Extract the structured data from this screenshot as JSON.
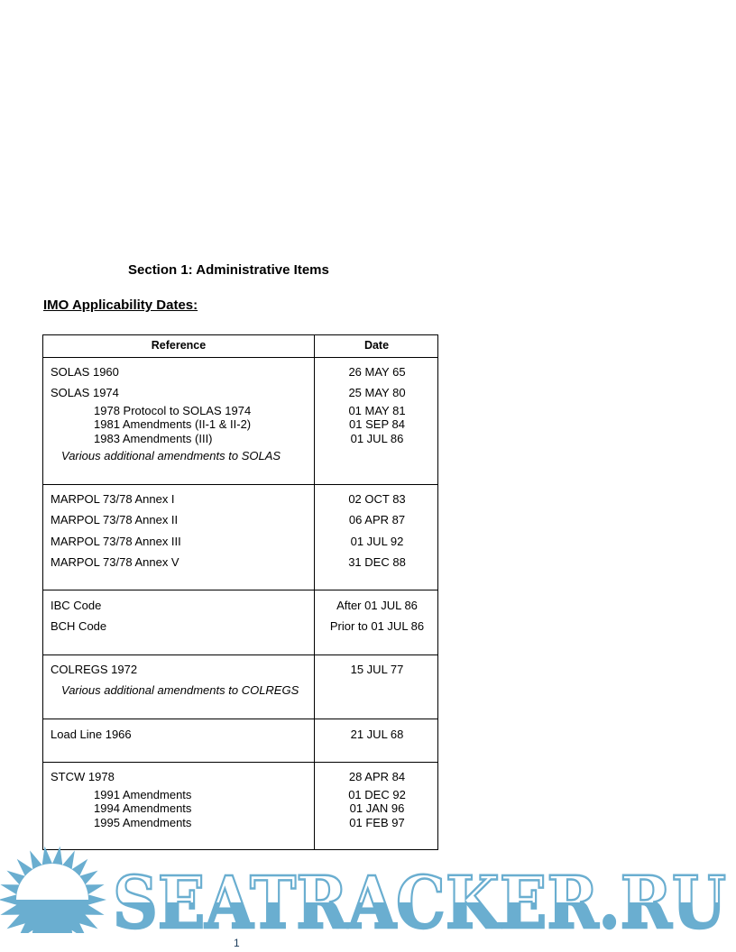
{
  "section_title": "Section 1:  Administrative Items",
  "subtitle": "IMO Applicability Dates:",
  "table": {
    "headers": {
      "reference": "Reference",
      "date": "Date"
    },
    "rows": [
      {
        "ref": "SOLAS 1960",
        "date": "26 MAY 65",
        "style": "main"
      },
      {
        "ref": "SOLAS 1974",
        "date": "25 MAY 80",
        "style": "main"
      },
      {
        "ref": "1978 Protocol to SOLAS 1974",
        "date": "01 MAY 81",
        "style": "sub"
      },
      {
        "ref": "1981 Amendments  (II-1 & II-2)",
        "date": "01 SEP 84",
        "style": "sub"
      },
      {
        "ref": "1983 Amendments  (III)",
        "date": "01 JUL 86",
        "style": "sub"
      },
      {
        "ref": "Various additional amendments to SOLAS",
        "date": "",
        "style": "note"
      },
      {
        "ref": "MARPOL 73/78 Annex I",
        "date": "02 OCT 83",
        "style": "main"
      },
      {
        "ref": "MARPOL 73/78 Annex II",
        "date": "06 APR 87",
        "style": "main"
      },
      {
        "ref": "MARPOL 73/78 Annex III",
        "date": "01 JUL 92",
        "style": "main"
      },
      {
        "ref": "MARPOL 73/78 Annex V",
        "date": "31 DEC 88",
        "style": "main"
      },
      {
        "ref": "IBC Code",
        "date": "After 01 JUL 86",
        "style": "main"
      },
      {
        "ref": "BCH Code",
        "date": "Prior to 01 JUL 86",
        "style": "main"
      },
      {
        "ref": "COLREGS 1972",
        "date": "15 JUL 77",
        "style": "main"
      },
      {
        "ref": "Various additional amendments to COLREGS",
        "date": "",
        "style": "note"
      },
      {
        "ref": "Load Line 1966",
        "date": "21 JUL 68",
        "style": "main"
      },
      {
        "ref": "STCW 1978",
        "date": "28 APR 84",
        "style": "main"
      },
      {
        "ref": "1991 Amendments",
        "date": "01 DEC 92",
        "style": "sub"
      },
      {
        "ref": "1994 Amendments",
        "date": "01 JAN 96",
        "style": "sub"
      },
      {
        "ref": "1995 Amendments",
        "date": "01 FEB 97",
        "style": "sub"
      }
    ]
  },
  "watermark": "SEATRACKER.RU",
  "page_number": "1",
  "colors": {
    "watermark_blue": "#6aaed0"
  }
}
